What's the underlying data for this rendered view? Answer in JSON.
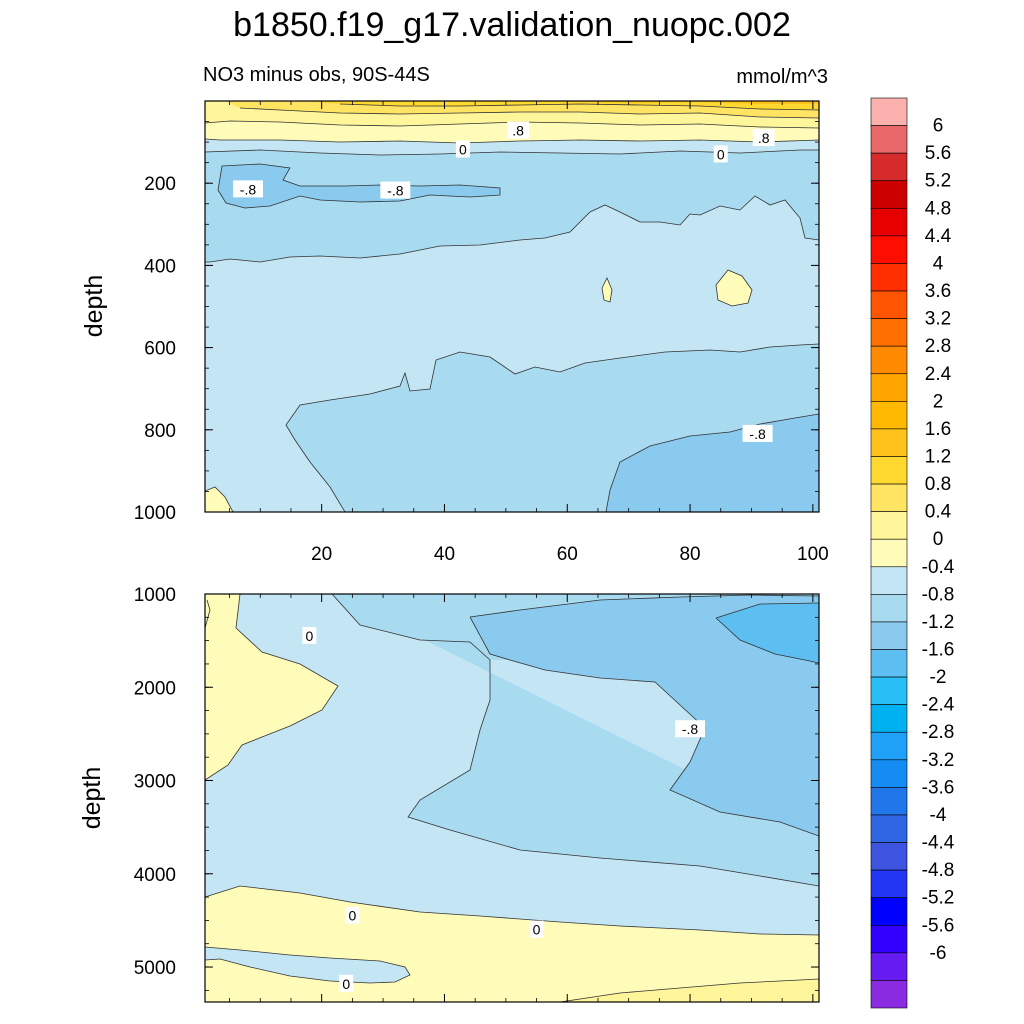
{
  "title": "b1850.f19_g17.validation_nuopc.002",
  "subtitle": "NO3 minus obs, 90S-44S",
  "units": "mmol/m^3",
  "chart_data": {
    "type": "heatmap",
    "x_ticks": [
      "20",
      "40",
      "60",
      "80",
      "100"
    ],
    "x_range": [
      1,
      101
    ],
    "ylabel": "depth",
    "panels": [
      {
        "name": "upper",
        "y_range": [
          0,
          1000
        ],
        "y_ticks": [
          "200",
          "400",
          "600",
          "800",
          "1000"
        ]
      },
      {
        "name": "lower",
        "y_range": [
          1000,
          5375
        ],
        "y_ticks": [
          "1000",
          "2000",
          "3000",
          "4000",
          "5000"
        ]
      }
    ],
    "contour_labels": [
      {
        "panel": "upper",
        "text": ".8",
        "x": 52,
        "y": 72
      },
      {
        "panel": "upper",
        "text": ".8",
        "x": 92,
        "y": 90
      },
      {
        "panel": "upper",
        "text": "0",
        "x": 43,
        "y": 118
      },
      {
        "panel": "upper",
        "text": "0",
        "x": 85,
        "y": 130
      },
      {
        "panel": "upper",
        "text": "-.8",
        "x": 8,
        "y": 215
      },
      {
        "panel": "upper",
        "text": "-.8",
        "x": 32,
        "y": 218
      },
      {
        "panel": "upper",
        "text": "-.8",
        "x": 91,
        "y": 810
      },
      {
        "panel": "lower",
        "text": "0",
        "x": 18,
        "y": 1450
      },
      {
        "panel": "lower",
        "text": "-.8",
        "x": 80,
        "y": 2450
      },
      {
        "panel": "lower",
        "text": "0",
        "x": 25,
        "y": 4450
      },
      {
        "panel": "lower",
        "text": "0",
        "x": 55,
        "y": 4600
      },
      {
        "panel": "lower",
        "text": "0",
        "x": 24,
        "y": 5180
      }
    ],
    "colorbar": {
      "labels": [
        "6",
        "5.6",
        "5.2",
        "4.8",
        "4.4",
        "4",
        "3.6",
        "3.2",
        "2.8",
        "2.4",
        "2",
        "1.6",
        "1.2",
        "0.8",
        "0.4",
        "0",
        "-0.4",
        "-0.8",
        "-1.2",
        "-1.6",
        "-2",
        "-2.4",
        "-2.8",
        "-3.2",
        "-3.6",
        "-4",
        "-4.4",
        "-4.8",
        "-5.2",
        "-5.6",
        "-6"
      ],
      "colors": [
        "#fbb1ae",
        "#e9686a",
        "#d52b2a",
        "#cd0000",
        "#e60000",
        "#ff0d00",
        "#ff2f00",
        "#ff5500",
        "#ff6e00",
        "#ff8a00",
        "#ffa500",
        "#ffb900",
        "#ffc21c",
        "#ffd830",
        "#ffe363",
        "#fff59a",
        "#fffbb9",
        "#c4e6f4",
        "#a8daf0",
        "#89caee",
        "#5dbef1",
        "#27bff5",
        "#00b1f2",
        "#1ea1f7",
        "#158cf4",
        "#2177ea",
        "#2f66e3",
        "#3c54e0",
        "#2237f3",
        "#0000ff",
        "#3100ff",
        "#661cf0",
        "#8a2be2"
      ]
    }
  }
}
